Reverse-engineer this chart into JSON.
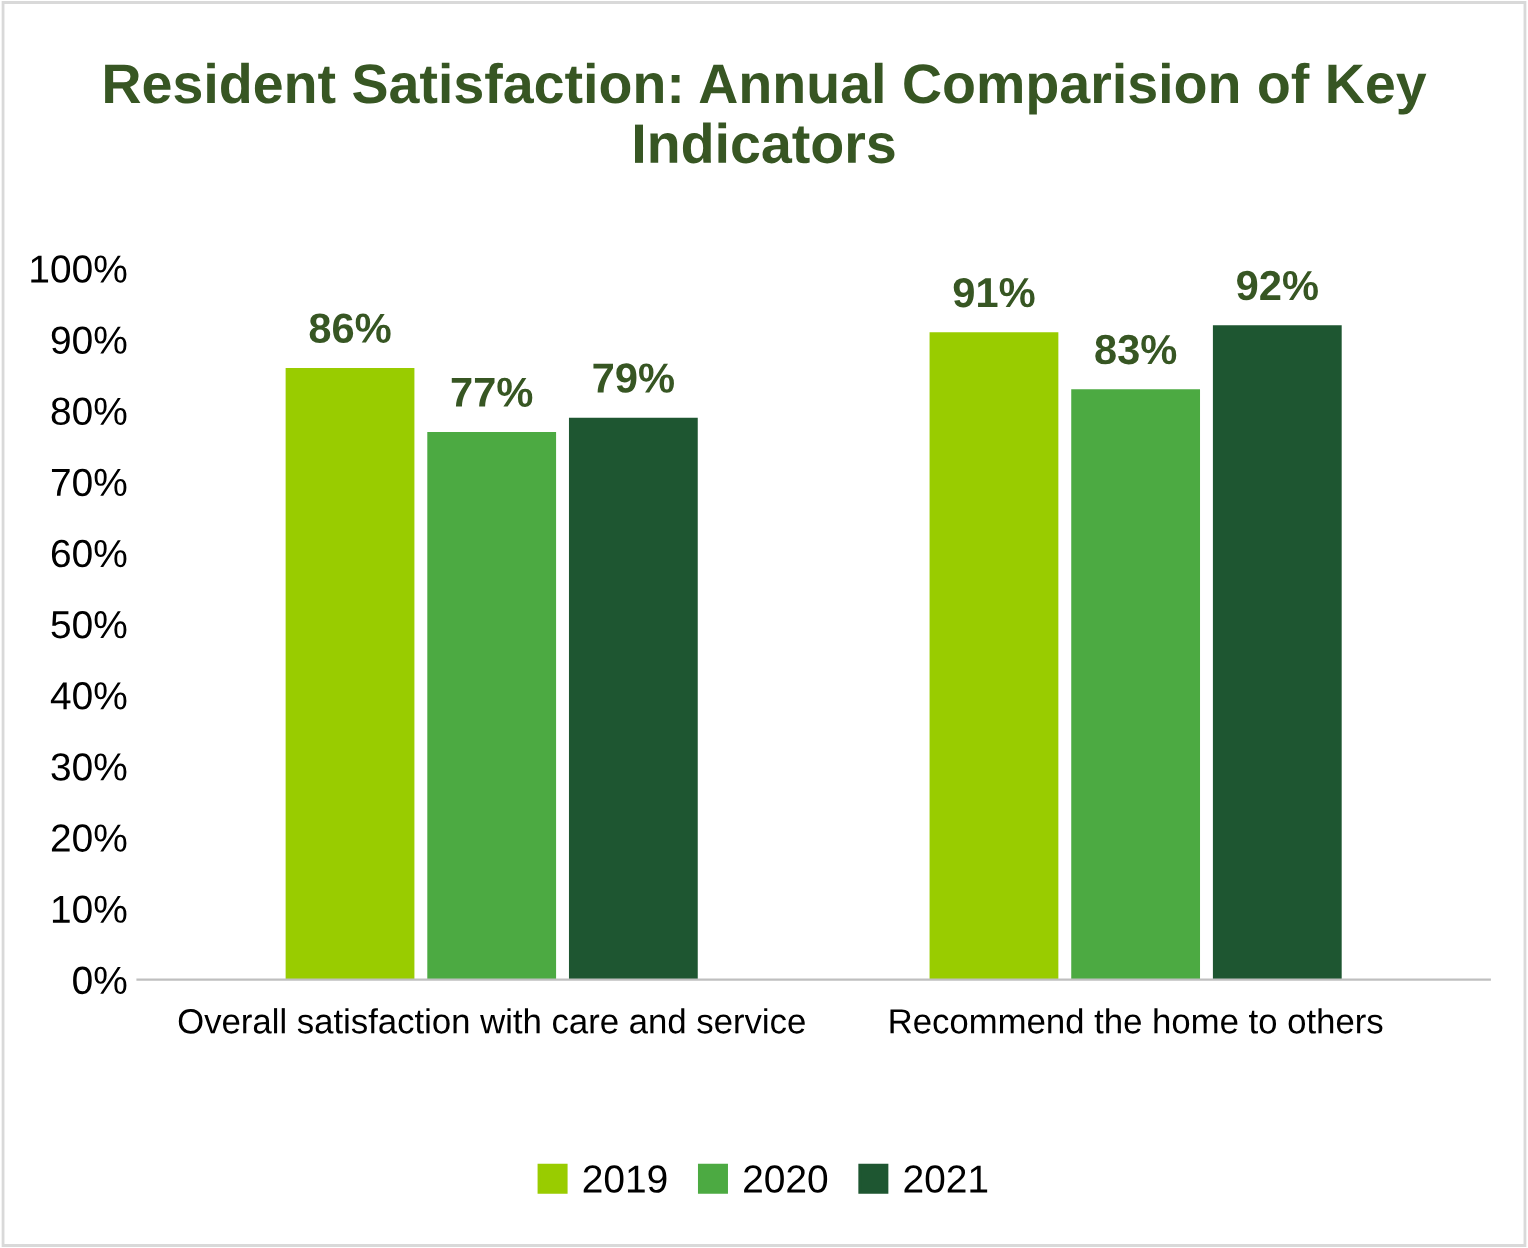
{
  "chart_data": {
    "type": "bar",
    "title": "Resident Satisfaction: Annual Comparision of Key Indicators",
    "categories": [
      "Overall satisfaction with care and service",
      "Recommend the home to others"
    ],
    "series": [
      {
        "name": "2019",
        "color": "#99cc00",
        "values": [
          86,
          91
        ],
        "value_labels": [
          "86%",
          "91%"
        ]
      },
      {
        "name": "2020",
        "color": "#4caa42",
        "values": [
          77,
          83
        ],
        "value_labels": [
          "77%",
          "83%"
        ]
      },
      {
        "name": "2021",
        "color": "#1e5631",
        "values": [
          79,
          92
        ],
        "value_labels": [
          "79%",
          "92%"
        ]
      }
    ],
    "ylim": [
      0,
      100
    ],
    "yticks": [
      {
        "value": 0,
        "label": "0%"
      },
      {
        "value": 10,
        "label": "10%"
      },
      {
        "value": 20,
        "label": "20%"
      },
      {
        "value": 30,
        "label": "30%"
      },
      {
        "value": 40,
        "label": "40%"
      },
      {
        "value": 50,
        "label": "50%"
      },
      {
        "value": 60,
        "label": "60%"
      },
      {
        "value": 70,
        "label": "70%"
      },
      {
        "value": 80,
        "label": "80%"
      },
      {
        "value": 90,
        "label": "90%"
      },
      {
        "value": 100,
        "label": "100%"
      }
    ],
    "grid": false,
    "legend": "bottom"
  }
}
